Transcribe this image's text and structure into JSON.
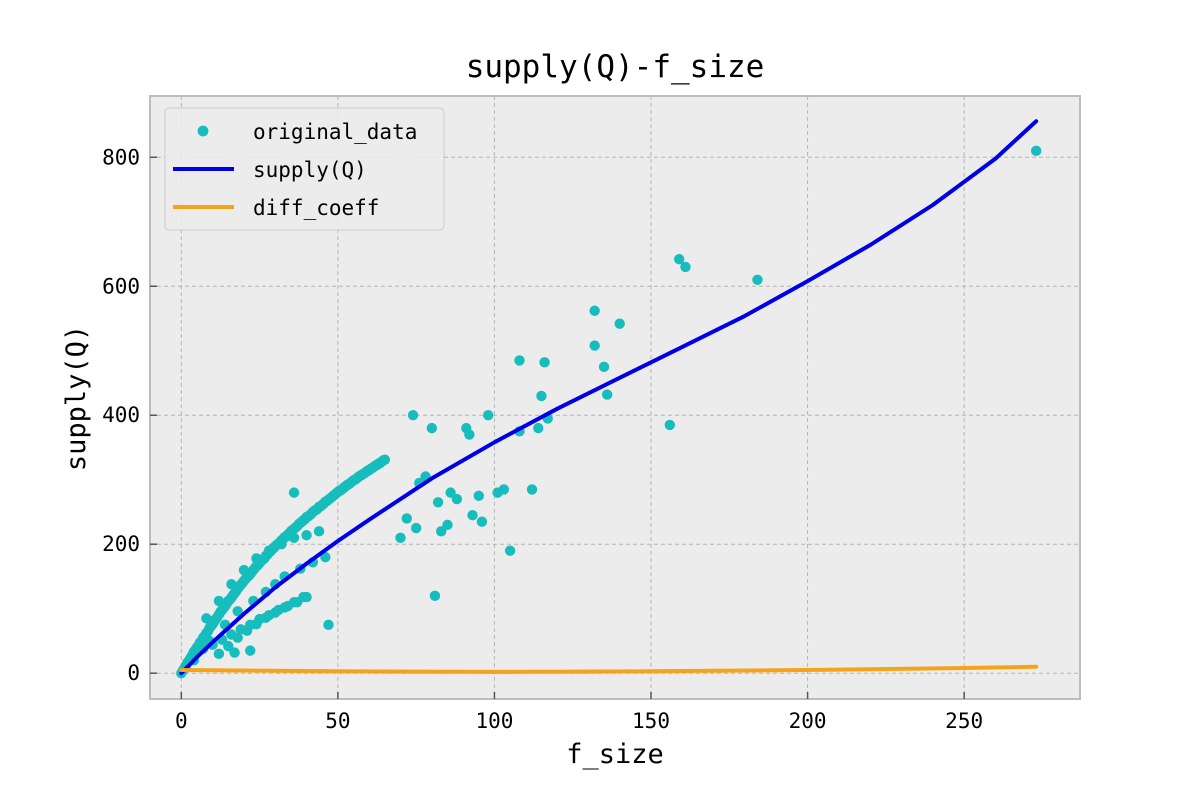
{
  "chart_data": {
    "type": "scatter",
    "title": "supply(Q)-f_size",
    "xlabel": "f_size",
    "ylabel": "supply(Q)",
    "xlim": [
      -10,
      287
    ],
    "ylim": [
      -40,
      895
    ],
    "xticks": [
      0,
      50,
      100,
      150,
      200,
      250
    ],
    "yticks": [
      0,
      200,
      400,
      600,
      800
    ],
    "grid": true,
    "legend_position": "top-left",
    "colors": {
      "original_data": "#17bdbd",
      "supply_q": "#0000e6",
      "diff_coeff": "#f5a31a",
      "axes_background": "#ececec",
      "grid": "#b5b5b5",
      "spine": "#bcbcbc"
    },
    "series": [
      {
        "name": "original_data",
        "kind": "scatter",
        "x": [
          0,
          0.5,
          1,
          1.5,
          2,
          2.5,
          3,
          3.5,
          4,
          4.5,
          5,
          5.5,
          6,
          6.5,
          7,
          7.5,
          8,
          8.5,
          9,
          9.5,
          10,
          10.5,
          11,
          11.5,
          12,
          12.5,
          13,
          13.5,
          14,
          14.5,
          15,
          15.5,
          16,
          16.5,
          17,
          17.5,
          18,
          18.5,
          19,
          19.5,
          20,
          20.5,
          21,
          21.5,
          22,
          22.5,
          23,
          23.5,
          24,
          24.5,
          25,
          25.5,
          26,
          26.5,
          27,
          27.5,
          28,
          28.5,
          29,
          29.5,
          30,
          30.5,
          31,
          31.5,
          32,
          32.5,
          33,
          33.5,
          34,
          34.5,
          35,
          35.5,
          36,
          36.5,
          37,
          37.5,
          38,
          38.5,
          39,
          39.5,
          40,
          40.5,
          41,
          41.5,
          42,
          42.5,
          43,
          43.5,
          44,
          44.5,
          45,
          45.5,
          46,
          46.5,
          47,
          47.5,
          48,
          48.5,
          49,
          49.5,
          50,
          50.5,
          51,
          51.5,
          52,
          52.5,
          53,
          53.5,
          54,
          54.5,
          55,
          55.5,
          56,
          56.5,
          57,
          57.5,
          58,
          58.5,
          59,
          59.5,
          60,
          60.5,
          61,
          61.5,
          62,
          62.5,
          63,
          63.5,
          64,
          64.5,
          65,
          7,
          10,
          13,
          16,
          19,
          22,
          25,
          28,
          31,
          34,
          37,
          40,
          8,
          12,
          16,
          20,
          24,
          28,
          32,
          36,
          40,
          44,
          4,
          9,
          14,
          18,
          23,
          27,
          30,
          33,
          38,
          42,
          46,
          12,
          15,
          18,
          21,
          24,
          27,
          30,
          33,
          36,
          39,
          36,
          22,
          17,
          47,
          70,
          72,
          74,
          75,
          76,
          78,
          80,
          81,
          82,
          83,
          85,
          86,
          88,
          91,
          92,
          93,
          95,
          96,
          98,
          101,
          103,
          105,
          108,
          108,
          112,
          114,
          115,
          116,
          117,
          132,
          132,
          135,
          136,
          140,
          156,
          159,
          161,
          184,
          273
        ],
        "y": [
          0,
          4,
          8,
          12,
          17,
          20,
          24,
          28,
          33,
          36,
          40,
          43,
          48,
          50,
          55,
          58,
          62,
          65,
          70,
          73,
          76,
          80,
          84,
          87,
          91,
          95,
          98,
          101,
          104,
          108,
          112,
          114,
          117,
          121,
          124,
          127,
          131,
          134,
          137,
          140,
          143,
          146,
          149,
          151,
          154,
          157,
          160,
          163,
          166,
          168,
          171,
          174,
          176,
          178,
          182,
          184,
          187,
          189,
          192,
          194,
          197,
          199,
          201,
          203,
          206,
          208,
          211,
          212,
          215,
          217,
          220,
          222,
          224,
          226,
          228,
          231,
          233,
          235,
          237,
          239,
          242,
          243,
          245,
          247,
          250,
          252,
          253,
          255,
          258,
          259,
          261,
          263,
          266,
          267,
          269,
          271,
          273,
          275,
          277,
          279,
          281,
          283,
          284,
          286,
          288,
          290,
          292,
          293,
          295,
          297,
          299,
          300,
          302,
          304,
          306,
          307,
          309,
          310,
          312,
          314,
          315,
          317,
          318,
          320,
          322,
          323,
          325,
          326,
          328,
          330,
          331,
          38,
          44,
          52,
          60,
          68,
          75,
          84,
          90,
          98,
          104,
          110,
          118,
          85,
          112,
          138,
          160,
          178,
          190,
          200,
          210,
          214,
          220,
          20,
          50,
          75,
          96,
          112,
          126,
          138,
          150,
          162,
          172,
          180,
          30,
          42,
          55,
          66,
          76,
          86,
          94,
          102,
          110,
          118,
          280,
          35,
          32,
          75,
          210,
          240,
          400,
          225,
          295,
          305,
          380,
          120,
          265,
          220,
          230,
          280,
          270,
          380,
          370,
          245,
          275,
          235,
          400,
          280,
          285,
          190,
          485,
          375,
          285,
          380,
          430,
          482,
          395,
          508,
          562,
          475,
          432,
          542,
          385,
          642,
          630,
          610,
          810
        ]
      },
      {
        "name": "supply(Q)",
        "kind": "line",
        "x": [
          0,
          5,
          10,
          20,
          30,
          40,
          50,
          60,
          80,
          100,
          120,
          140,
          160,
          180,
          200,
          220,
          240,
          260,
          273
        ],
        "y": [
          0,
          25,
          48,
          92,
          133,
          170,
          205,
          238,
          302,
          358,
          410,
          458,
          506,
          554,
          608,
          664,
          726,
          798,
          856
        ]
      },
      {
        "name": "diff_coeff",
        "kind": "line",
        "x": [
          0,
          50,
          100,
          150,
          200,
          250,
          273
        ],
        "y": [
          5,
          3,
          2,
          3,
          5,
          8,
          10
        ]
      }
    ]
  }
}
